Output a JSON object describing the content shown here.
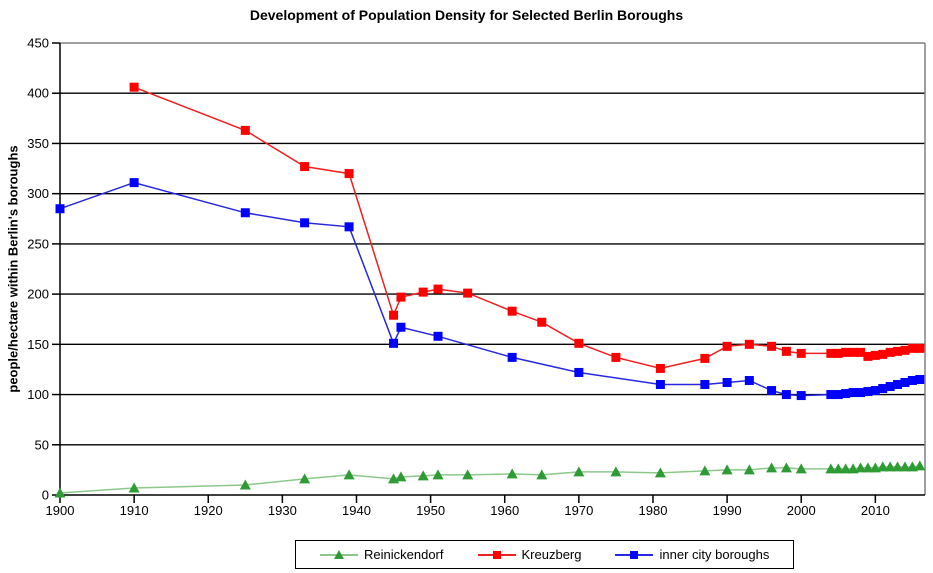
{
  "chart_data": {
    "type": "line",
    "title": "Development of Population Density for Selected Berlin Boroughs",
    "xlabel": "",
    "ylabel": "people/hectare within Berlin's boroughs",
    "xlim": [
      1900,
      2016.7
    ],
    "ylim": [
      0,
      450
    ],
    "xticks": [
      1900,
      1910,
      1920,
      1930,
      1940,
      1950,
      1960,
      1970,
      1980,
      1990,
      2000,
      2010
    ],
    "yticks": [
      0,
      50,
      100,
      150,
      200,
      250,
      300,
      350,
      400,
      450
    ],
    "grid": "horizontal",
    "grid_color": "#000000",
    "frame_color": "#808080",
    "axis_color": "#000000",
    "background": "#FFFFFF",
    "legend_position": "bottom-center",
    "series": [
      {
        "name": "Reinickendorf",
        "marker": "triangle",
        "marker_color": "#2F9B35",
        "line_color": "#8CC88C",
        "points": [
          [
            1900,
            2
          ],
          [
            1910,
            7
          ],
          [
            1925,
            10
          ],
          [
            1933,
            16
          ],
          [
            1939,
            20
          ],
          [
            1945,
            16
          ],
          [
            1946,
            18
          ],
          [
            1949,
            19
          ],
          [
            1951,
            20
          ],
          [
            1955,
            20
          ],
          [
            1961,
            21
          ],
          [
            1965,
            20
          ],
          [
            1970,
            23
          ],
          [
            1975,
            23
          ],
          [
            1981,
            22
          ],
          [
            1987,
            24
          ],
          [
            1990,
            25
          ],
          [
            1993,
            25
          ],
          [
            1996,
            27
          ],
          [
            1998,
            27
          ],
          [
            2000,
            26
          ],
          [
            2004,
            26
          ],
          [
            2005,
            26
          ],
          [
            2006,
            26
          ],
          [
            2007,
            26
          ],
          [
            2008,
            27
          ],
          [
            2009,
            27
          ],
          [
            2010,
            27
          ],
          [
            2011,
            28
          ],
          [
            2012,
            28
          ],
          [
            2013,
            28
          ],
          [
            2014,
            28
          ],
          [
            2015,
            28
          ],
          [
            2016,
            29
          ]
        ]
      },
      {
        "name": "Kreuzberg",
        "marker": "square",
        "marker_color": "#FF0000",
        "line_color": "#F02020",
        "points": [
          [
            1910,
            406
          ],
          [
            1925,
            363
          ],
          [
            1933,
            327
          ],
          [
            1939,
            320
          ],
          [
            1945,
            179
          ],
          [
            1946,
            197
          ],
          [
            1949,
            202
          ],
          [
            1951,
            205
          ],
          [
            1955,
            201
          ],
          [
            1961,
            183
          ],
          [
            1965,
            172
          ],
          [
            1970,
            151
          ],
          [
            1975,
            137
          ],
          [
            1981,
            126
          ],
          [
            1987,
            136
          ],
          [
            1990,
            148
          ],
          [
            1993,
            150
          ],
          [
            1996,
            148
          ],
          [
            1998,
            143
          ],
          [
            2000,
            141
          ],
          [
            2004,
            141
          ],
          [
            2005,
            141
          ],
          [
            2006,
            142
          ],
          [
            2007,
            142
          ],
          [
            2008,
            142
          ],
          [
            2009,
            138
          ],
          [
            2010,
            139
          ],
          [
            2011,
            140
          ],
          [
            2012,
            142
          ],
          [
            2013,
            143
          ],
          [
            2014,
            144
          ],
          [
            2015,
            146
          ],
          [
            2016,
            146
          ]
        ]
      },
      {
        "name": "inner city boroughs",
        "marker": "square",
        "marker_color": "#0000FF",
        "line_color": "#2828E0",
        "points": [
          [
            1900,
            285
          ],
          [
            1910,
            311
          ],
          [
            1925,
            281
          ],
          [
            1933,
            271
          ],
          [
            1939,
            267
          ],
          [
            1945,
            151
          ],
          [
            1946,
            167
          ],
          [
            1951,
            158
          ],
          [
            1961,
            137
          ],
          [
            1970,
            122
          ],
          [
            1981,
            110
          ],
          [
            1987,
            110
          ],
          [
            1990,
            112
          ],
          [
            1993,
            114
          ],
          [
            1996,
            104
          ],
          [
            1998,
            100
          ],
          [
            2000,
            99
          ],
          [
            2004,
            100
          ],
          [
            2005,
            100
          ],
          [
            2006,
            101
          ],
          [
            2007,
            102
          ],
          [
            2008,
            102
          ],
          [
            2009,
            103
          ],
          [
            2010,
            104
          ],
          [
            2011,
            106
          ],
          [
            2012,
            108
          ],
          [
            2013,
            110
          ],
          [
            2014,
            112
          ],
          [
            2015,
            114
          ],
          [
            2016,
            115
          ]
        ]
      }
    ]
  }
}
